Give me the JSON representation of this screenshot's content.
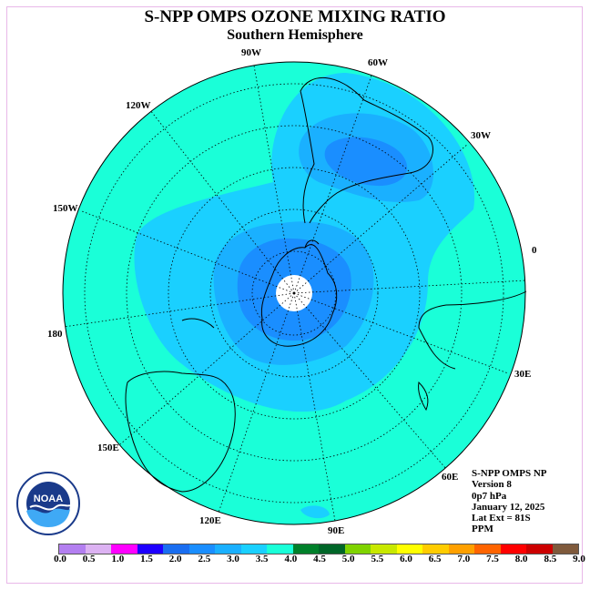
{
  "title": "S-NPP OMPS OZONE MIXING RATIO",
  "subtitle": "Southern Hemisphere",
  "longitude_labels": [
    "90W",
    "60W",
    "30W",
    "0",
    "30E",
    "60E",
    "90E",
    "120E",
    "150E",
    "180",
    "150W",
    "120W"
  ],
  "info": {
    "instrument": "S-NPP OMPS NP",
    "version": "Version 8",
    "level": "0p7 hPa",
    "date": "January 12, 2025",
    "lat_ext": "Lat Ext = 81S",
    "units": "PPM"
  },
  "logo_text": "NOAA",
  "colorbar": {
    "colors": [
      "#b37ff0",
      "#dcb2f2",
      "#ff00ff",
      "#1e00ff",
      "#1a6ef0",
      "#1a8eff",
      "#1ab0ff",
      "#1ad0ff",
      "#1affd8",
      "#00802a",
      "#006628",
      "#7fd300",
      "#c8e800",
      "#ffff00",
      "#ffcc00",
      "#ffa000",
      "#ff6400",
      "#ff0000",
      "#cc0000",
      "#7f5a3c"
    ],
    "tick_labels": [
      "0.0",
      "0.5",
      "1.0",
      "1.5",
      "2.0",
      "2.5",
      "3.0",
      "3.5",
      "4.0",
      "4.5",
      "5.0",
      "5.5",
      "6.0",
      "6.5",
      "7.0",
      "7.5",
      "8.0",
      "8.5",
      "9.0"
    ]
  }
}
